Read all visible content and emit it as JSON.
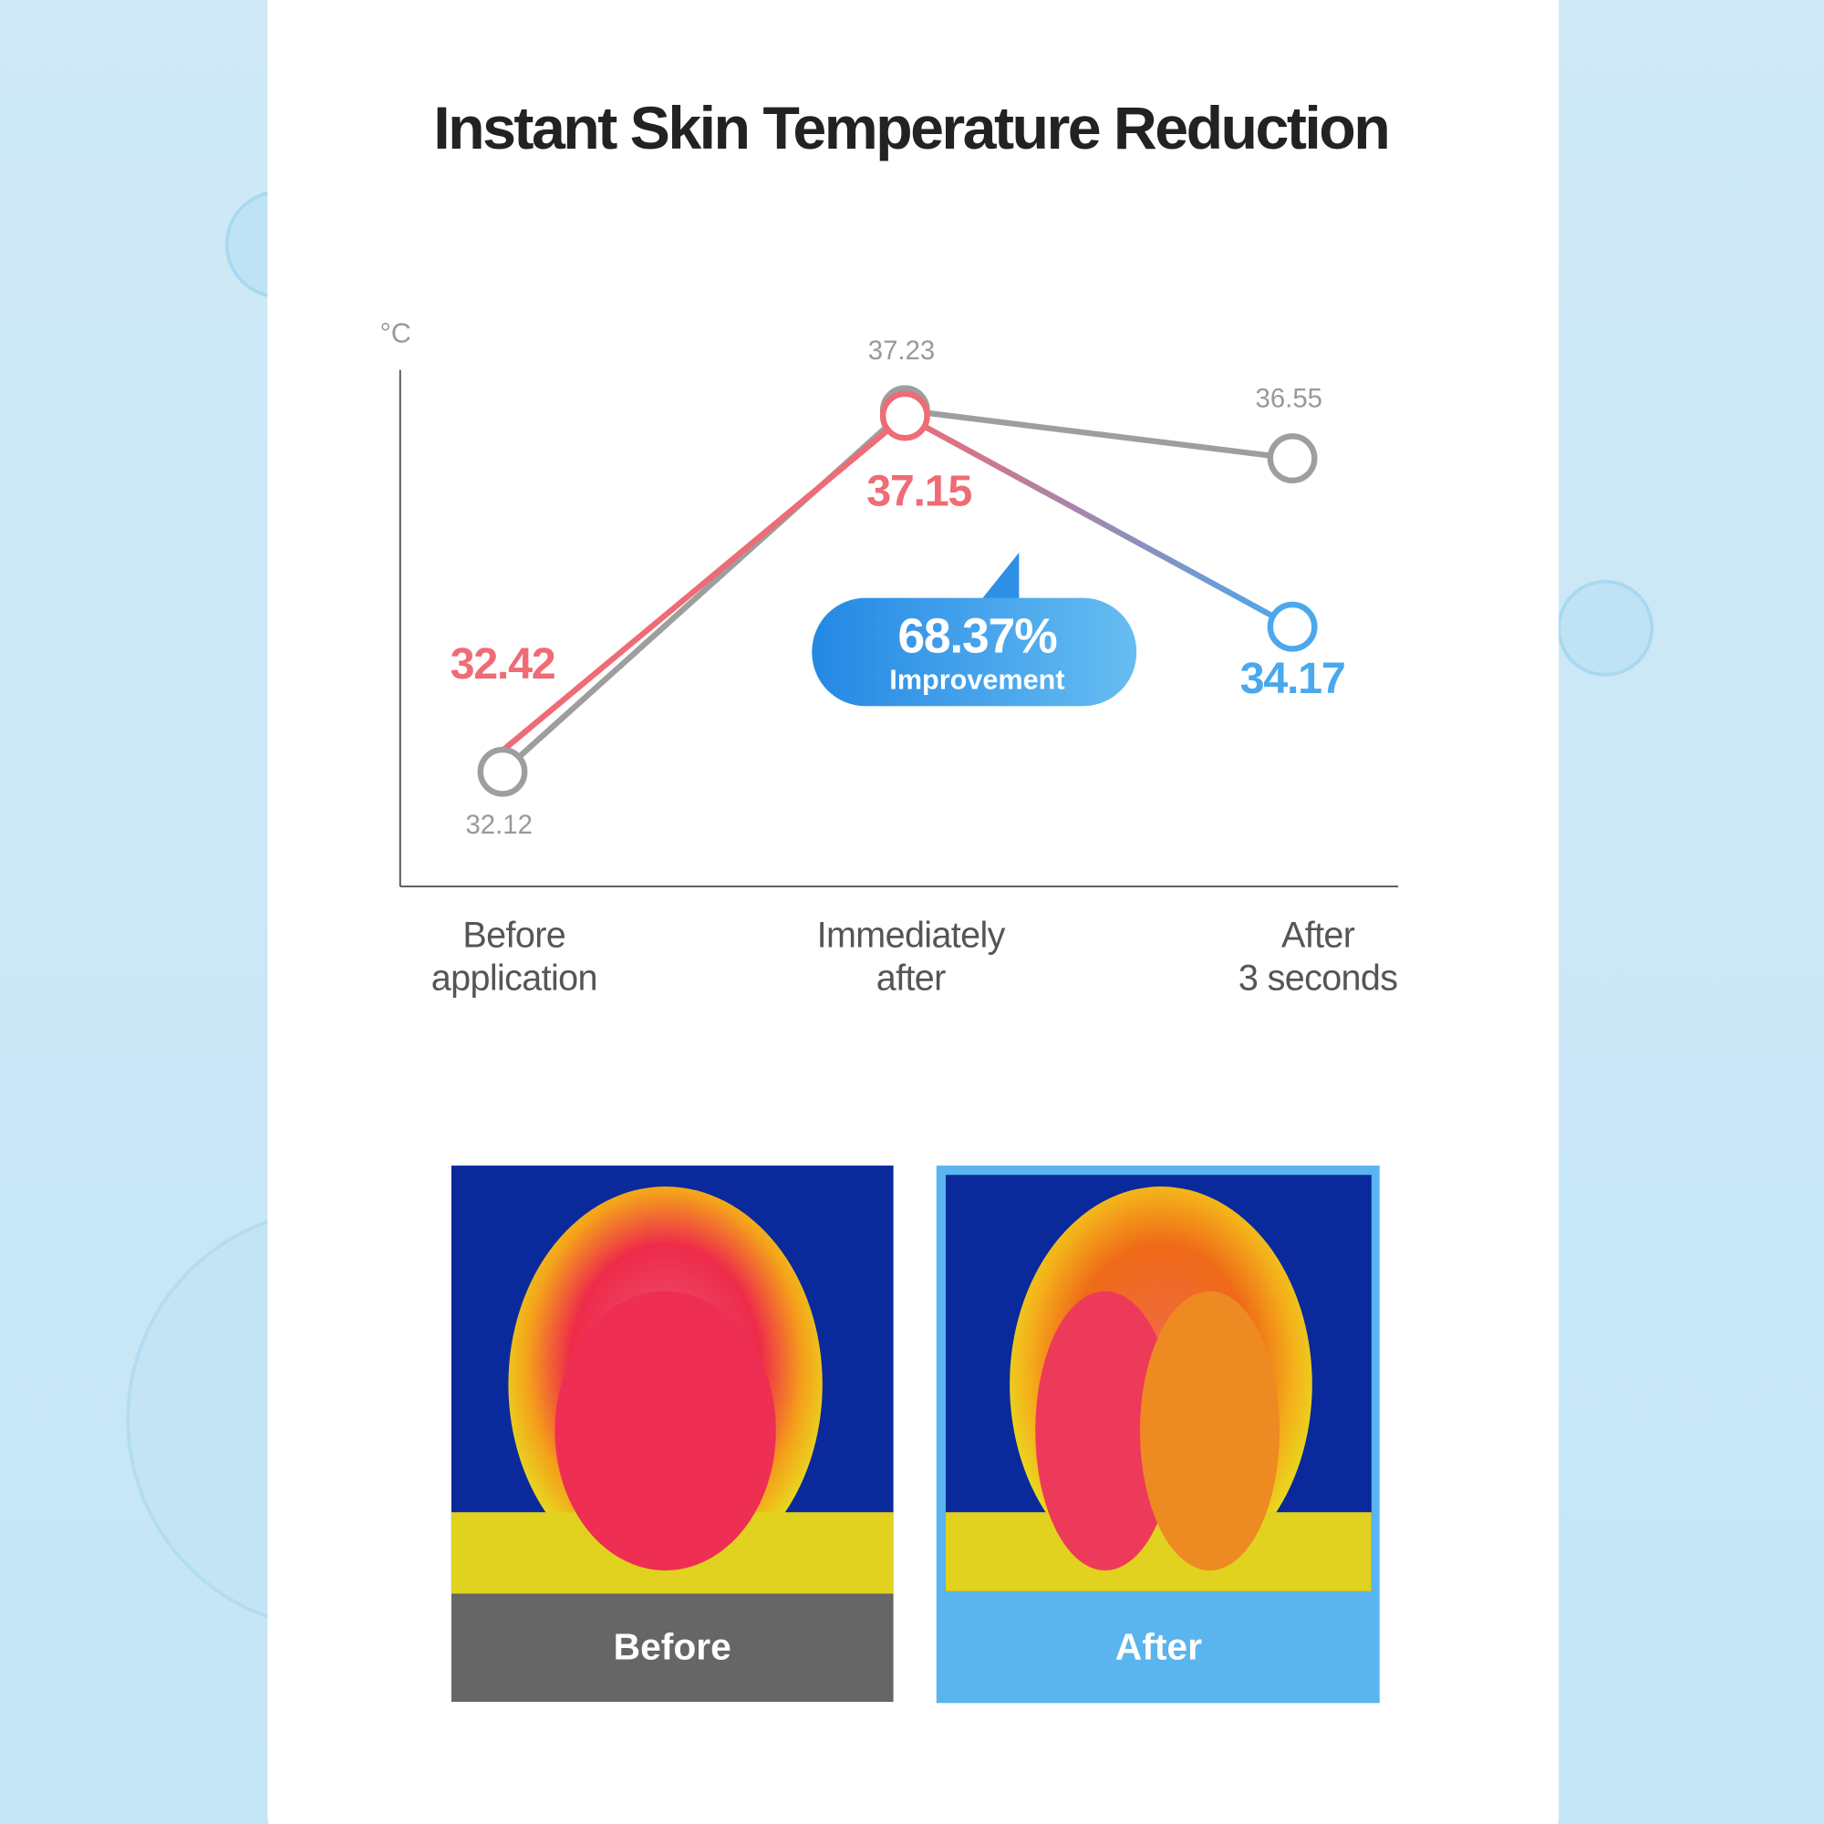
{
  "chart_data": {
    "type": "line",
    "title": "Instant Skin Temperature Reduction",
    "y_label": "°C",
    "categories": [
      "Before\napplication",
      "Immediately\nafter",
      "After\n3 seconds"
    ],
    "series": [
      {
        "color": "#9e9e9e",
        "values": [
          32.12,
          37.23,
          36.55
        ]
      },
      {
        "colors": [
          "#ef6b75",
          "#ef6b75",
          "#4aa8ee"
        ],
        "values": [
          32.42,
          37.15,
          34.17
        ]
      }
    ],
    "ylim": [
      30.5,
      37.8
    ],
    "annotation": {
      "value": "68.37%",
      "text": "Improvement"
    },
    "images": [
      {
        "label": "Before"
      },
      {
        "label": "After"
      }
    ]
  }
}
